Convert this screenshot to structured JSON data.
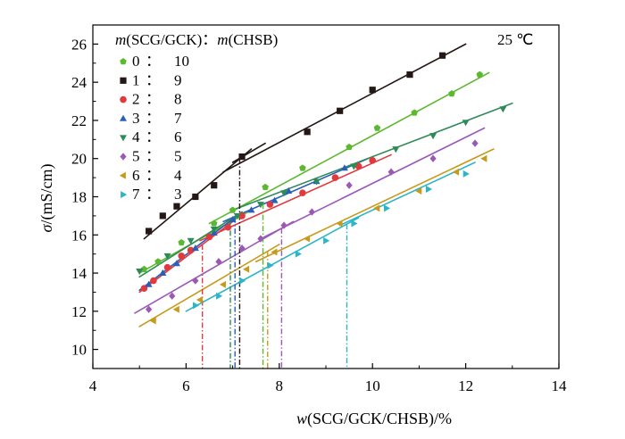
{
  "chart_data": {
    "type": "scatter",
    "title": "",
    "temperature_label": "25 ℃",
    "legend_title_parts": [
      "m",
      "(SCG/GCK)：",
      "m",
      "(CHSB)"
    ],
    "xlabel_parts": [
      "w",
      "(SCG/GCK/CHSB)/%"
    ],
    "ylabel_parts": [
      "σ",
      "/(mS/cm)"
    ],
    "xlim": [
      4,
      14
    ],
    "ylim": [
      9,
      27
    ],
    "xticks": [
      4,
      6,
      8,
      10,
      12,
      14
    ],
    "yticks": [
      10,
      12,
      14,
      16,
      18,
      20,
      22,
      24,
      26
    ],
    "legend_placement": "top-left",
    "series": [
      {
        "name": "0 ：10",
        "ratio_a": "0",
        "ratio_b": "10",
        "marker": "pentagon",
        "color": "#5cb82e",
        "points": [
          [
            5.1,
            14.2
          ],
          [
            5.4,
            14.6
          ],
          [
            5.9,
            15.6
          ],
          [
            6.6,
            16.6
          ],
          [
            7.0,
            17.3
          ],
          [
            7.7,
            18.5
          ],
          [
            8.5,
            19.5
          ],
          [
            9.5,
            20.6
          ],
          [
            10.1,
            21.6
          ],
          [
            10.9,
            22.4
          ],
          [
            11.7,
            23.4
          ],
          [
            12.3,
            24.4
          ]
        ],
        "fits": [
          [
            [
              5.0,
              14.0
            ],
            [
              7.4,
              17.3
            ]
          ],
          [
            [
              6.5,
              16.6
            ],
            [
              12.5,
              24.5
            ]
          ]
        ],
        "cmc": 7.65
      },
      {
        "name": "1 ：9",
        "ratio_a": "1",
        "ratio_b": "9",
        "marker": "square",
        "color": "#231815",
        "points": [
          [
            5.2,
            16.2
          ],
          [
            5.5,
            17.0
          ],
          [
            5.8,
            17.5
          ],
          [
            6.2,
            18.0
          ],
          [
            6.6,
            18.6
          ],
          [
            7.2,
            20.1
          ],
          [
            8.6,
            21.4
          ],
          [
            9.3,
            22.5
          ],
          [
            10.0,
            23.6
          ],
          [
            10.8,
            24.4
          ],
          [
            11.5,
            25.4
          ]
        ],
        "fits": [
          [
            [
              5.1,
              15.8
            ],
            [
              7.4,
              20.5
            ]
          ],
          [
            [
              6.8,
              19.3
            ],
            [
              12.0,
              26.0
            ]
          ],
          [
            [
              7.0,
              19.8
            ],
            [
              7.7,
              20.8
            ]
          ]
        ],
        "cmc": 7.15
      },
      {
        "name": "2 ：8",
        "ratio_a": "2",
        "ratio_b": "8",
        "marker": "circle",
        "color": "#e03a3e",
        "points": [
          [
            5.1,
            13.2
          ],
          [
            5.3,
            13.6
          ],
          [
            5.6,
            14.3
          ],
          [
            5.9,
            14.9
          ],
          [
            6.1,
            15.2
          ],
          [
            6.5,
            15.9
          ],
          [
            6.9,
            16.4
          ],
          [
            7.2,
            17.0
          ],
          [
            7.8,
            17.6
          ],
          [
            8.5,
            18.2
          ],
          [
            9.2,
            19.0
          ],
          [
            9.7,
            19.6
          ],
          [
            10.0,
            19.9
          ]
        ],
        "fits": [
          [
            [
              5.0,
              13.0
            ],
            [
              7.0,
              16.7
            ]
          ],
          [
            [
              6.3,
              15.7
            ],
            [
              10.4,
              20.2
            ]
          ]
        ],
        "cmc": 6.35
      },
      {
        "name": "3 ：7",
        "ratio_a": "3",
        "ratio_b": "7",
        "marker": "triangle-up",
        "color": "#2a5fb8",
        "points": [
          [
            5.2,
            13.4
          ],
          [
            5.5,
            14.0
          ],
          [
            5.8,
            14.5
          ],
          [
            6.2,
            15.3
          ],
          [
            6.6,
            16.1
          ],
          [
            7.0,
            16.8
          ],
          [
            7.4,
            17.3
          ],
          [
            7.9,
            17.8
          ],
          [
            8.2,
            18.3
          ],
          [
            8.8,
            18.8
          ],
          [
            9.4,
            19.5
          ]
        ],
        "fits": [
          [
            [
              5.0,
              13.1
            ],
            [
              7.2,
              17.2
            ]
          ],
          [
            [
              6.8,
              16.7
            ],
            [
              9.9,
              20.0
            ]
          ]
        ],
        "cmc": 7.05
      },
      {
        "name": "4 ：6",
        "ratio_a": "4",
        "ratio_b": "6",
        "marker": "triangle-down",
        "color": "#2e8b57",
        "points": [
          [
            5.0,
            14.1
          ],
          [
            5.6,
            14.9
          ],
          [
            6.1,
            15.7
          ],
          [
            6.6,
            16.3
          ],
          [
            7.1,
            17.0
          ],
          [
            7.6,
            17.6
          ],
          [
            8.1,
            18.2
          ],
          [
            8.8,
            18.8
          ],
          [
            9.6,
            19.6
          ],
          [
            10.5,
            20.5
          ],
          [
            11.3,
            21.2
          ],
          [
            12.0,
            21.9
          ],
          [
            12.8,
            22.6
          ]
        ],
        "fits": [
          [
            [
              5.0,
              13.8
            ],
            [
              7.2,
              17.2
            ]
          ],
          [
            [
              7.0,
              17.3
            ],
            [
              13.0,
              22.9
            ]
          ]
        ],
        "cmc": 6.95
      },
      {
        "name": "5 ：5",
        "ratio_a": "5",
        "ratio_b": "5",
        "marker": "diamond",
        "color": "#9b59b6",
        "points": [
          [
            5.2,
            12.1
          ],
          [
            5.7,
            12.8
          ],
          [
            6.2,
            13.6
          ],
          [
            6.7,
            14.6
          ],
          [
            7.2,
            15.3
          ],
          [
            7.6,
            15.8
          ],
          [
            8.1,
            16.5
          ],
          [
            8.7,
            17.2
          ],
          [
            9.5,
            18.6
          ],
          [
            10.4,
            19.3
          ],
          [
            11.3,
            20.0
          ],
          [
            12.2,
            20.8
          ]
        ],
        "fits": [
          [
            [
              4.9,
              11.9
            ],
            [
              8.3,
              16.7
            ]
          ],
          [
            [
              7.6,
              15.8
            ],
            [
              12.4,
              21.6
            ]
          ]
        ],
        "cmc": 8.05
      },
      {
        "name": "6 ：4",
        "ratio_a": "6",
        "ratio_b": "4",
        "marker": "triangle-left",
        "color": "#c79a1b",
        "points": [
          [
            5.3,
            11.5
          ],
          [
            5.8,
            12.1
          ],
          [
            6.3,
            12.6
          ],
          [
            6.8,
            13.4
          ],
          [
            7.3,
            14.2
          ],
          [
            7.9,
            15.1
          ],
          [
            8.6,
            15.8
          ],
          [
            9.3,
            16.6
          ],
          [
            10.1,
            17.4
          ],
          [
            11.0,
            18.3
          ],
          [
            11.8,
            19.3
          ],
          [
            12.4,
            20.0
          ]
        ],
        "fits": [
          [
            [
              5.0,
              11.2
            ],
            [
              8.0,
              15.5
            ]
          ],
          [
            [
              7.5,
              14.6
            ],
            [
              12.6,
              20.5
            ]
          ]
        ],
        "cmc": 7.75
      },
      {
        "name": "7 ：3",
        "ratio_a": "7",
        "ratio_b": "3",
        "marker": "triangle-right",
        "color": "#2bb5c6",
        "points": [
          [
            6.2,
            12.3
          ],
          [
            6.7,
            12.8
          ],
          [
            7.2,
            13.6
          ],
          [
            7.8,
            14.4
          ],
          [
            8.4,
            15.0
          ],
          [
            9.0,
            15.7
          ],
          [
            9.6,
            16.6
          ],
          [
            10.3,
            17.4
          ],
          [
            11.2,
            18.4
          ],
          [
            12.0,
            19.2
          ]
        ],
        "fits": [
          [
            [
              6.0,
              12.0
            ],
            [
              9.7,
              16.9
            ]
          ],
          [
            [
              9.3,
              16.5
            ],
            [
              12.2,
              19.8
            ]
          ]
        ],
        "cmc": 9.45
      }
    ]
  }
}
